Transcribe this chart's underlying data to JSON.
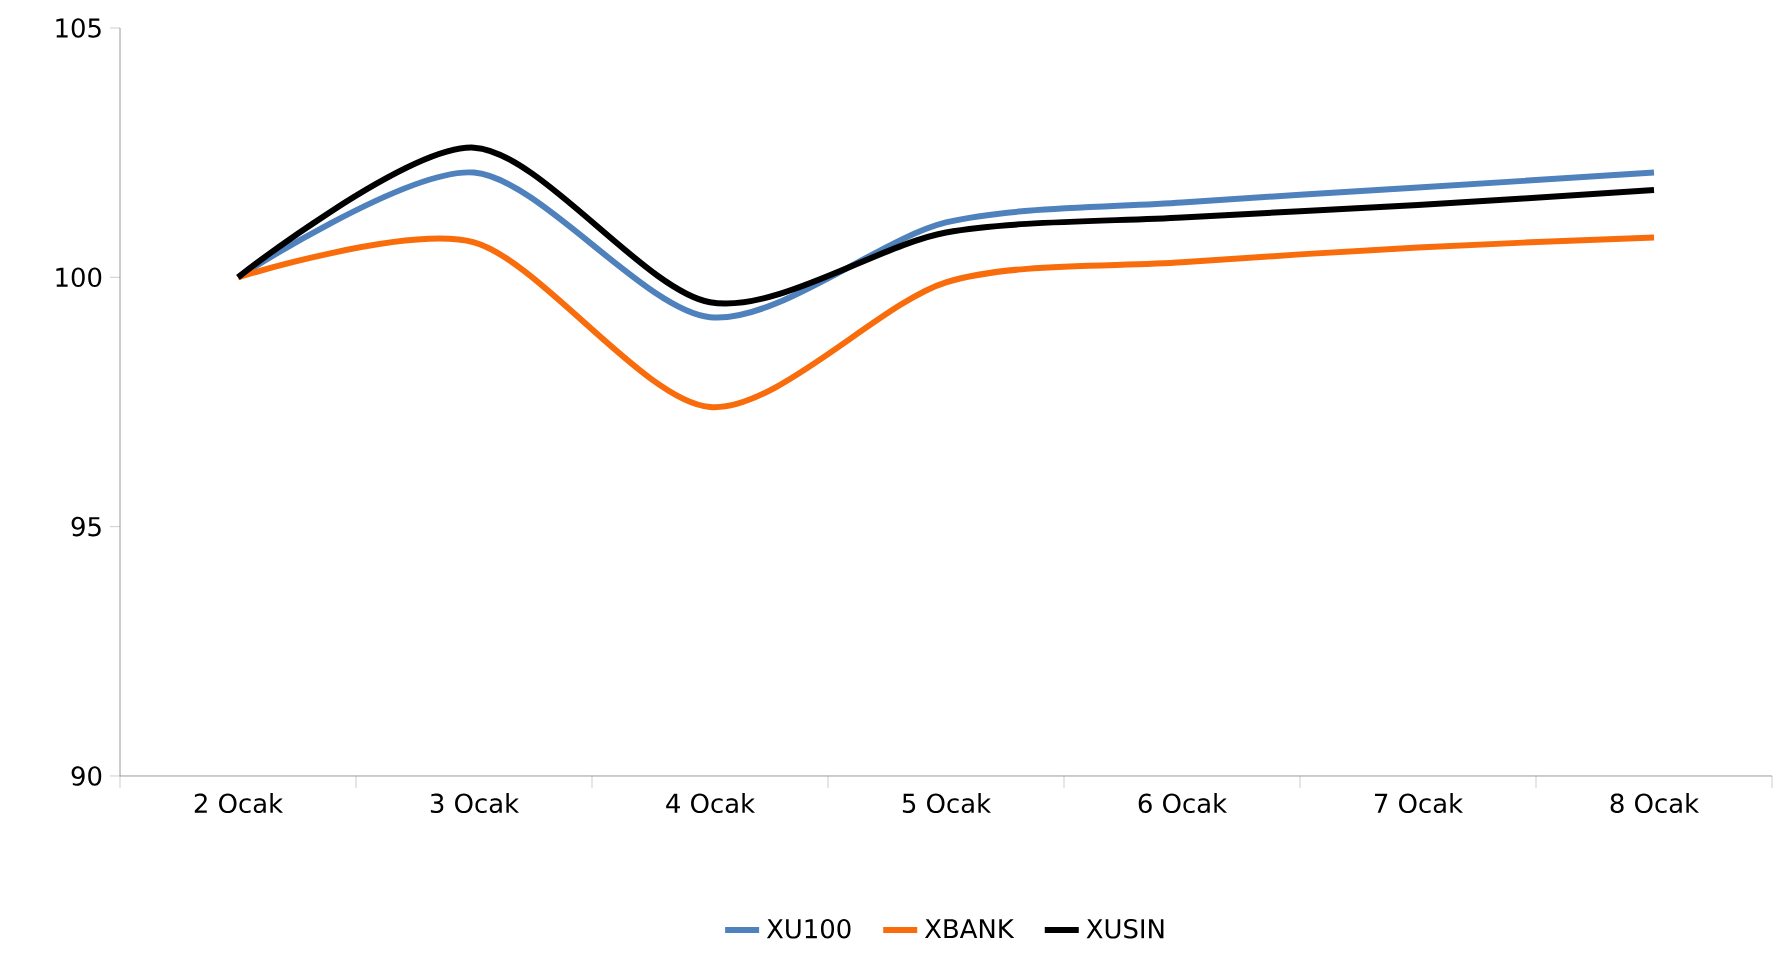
{
  "chart_data": {
    "type": "line",
    "categories": [
      "2 Ocak",
      "3 Ocak",
      "4 Ocak",
      "5 Ocak",
      "6 Ocak",
      "7 Ocak",
      "8 Ocak"
    ],
    "series": [
      {
        "name": "XU100",
        "color": "#4f81bd",
        "values": [
          100,
          102.1,
          99.2,
          101.1,
          101.5,
          101.8,
          102.1
        ]
      },
      {
        "name": "XBANK",
        "color": "#f96c0c",
        "values": [
          100,
          100.7,
          97.4,
          99.9,
          100.3,
          100.6,
          100.8
        ]
      },
      {
        "name": "XUSIN",
        "color": "#000000",
        "values": [
          100,
          102.6,
          99.5,
          100.9,
          101.2,
          101.45,
          101.75
        ]
      }
    ],
    "ylim": [
      90,
      105
    ],
    "yticks": [
      90,
      95,
      100,
      105
    ],
    "grid": false,
    "legend": "bottom",
    "marker": "none",
    "line_style": "solid"
  }
}
